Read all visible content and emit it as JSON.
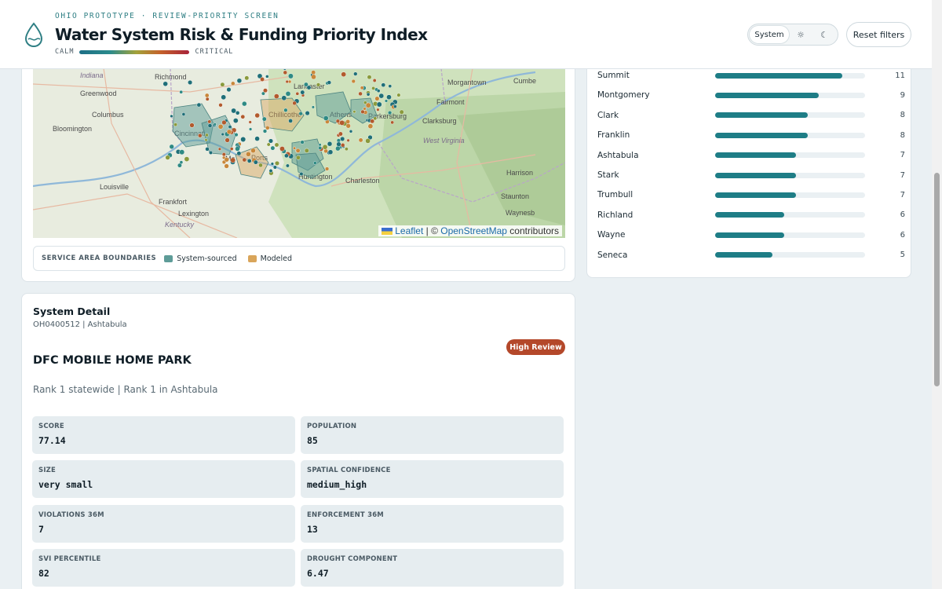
{
  "header": {
    "eyebrow": "OHIO PROTOTYPE · REVIEW-PRIORITY SCREEN",
    "title": "Water System Risk & Funding Priority Index",
    "scale_low": "CALM",
    "scale_high": "CRITICAL",
    "theme_toggle": {
      "selected": "System",
      "options": [
        "System",
        "sun-icon",
        "moon-icon"
      ]
    },
    "reset_label": "Reset filters"
  },
  "map": {
    "place_labels": [
      "Indiana",
      "Richmond",
      "Greenwood",
      "Columbus",
      "Bloomington",
      "Cincinnati",
      "Louisville",
      "Frankfort",
      "Lexington",
      "Kentucky",
      "Chillicothe",
      "Athens",
      "Parkersburg",
      "Clarksburg",
      "Fairmont",
      "Morgantown",
      "Cumbe",
      "West Virginia",
      "Harrison",
      "Charleston",
      "Huntington",
      "Staunton",
      "Waynesb",
      "Ports",
      "Lancaster",
      "Ma"
    ],
    "attribution_leaflet": "Leaflet",
    "attribution_sep": " | © ",
    "attribution_osm": "OpenStreetMap",
    "attribution_tail": " contributors",
    "legend": {
      "title": "SERVICE AREA BOUNDARIES",
      "items": [
        {
          "label": "System-sourced",
          "color": "#5e9c98"
        },
        {
          "label": "Modeled",
          "color": "#d9a55a"
        }
      ]
    }
  },
  "counties": [
    {
      "name": "Summit",
      "count": 11
    },
    {
      "name": "Montgomery",
      "count": 9
    },
    {
      "name": "Clark",
      "count": 8
    },
    {
      "name": "Franklin",
      "count": 8
    },
    {
      "name": "Ashtabula",
      "count": 7
    },
    {
      "name": "Stark",
      "count": 7
    },
    {
      "name": "Trumbull",
      "count": 7
    },
    {
      "name": "Richland",
      "count": 6
    },
    {
      "name": "Wayne",
      "count": 6
    },
    {
      "name": "Seneca",
      "count": 5
    }
  ],
  "county_bar_max": 13,
  "detail": {
    "heading": "System Detail",
    "subheading": "OH0400512 | Ashtabula",
    "badge": "High Review",
    "badge_color": "#b4482a",
    "system_name": "DFC MOBILE HOME PARK",
    "rank_text": "Rank 1 statewide | Rank 1 in Ashtabula",
    "stats": [
      {
        "label": "SCORE",
        "value": "77.14"
      },
      {
        "label": "POPULATION",
        "value": "85"
      },
      {
        "label": "SIZE",
        "value": "very small"
      },
      {
        "label": "SPATIAL CONFIDENCE",
        "value": "medium_high"
      },
      {
        "label": "VIOLATIONS 36M",
        "value": "7"
      },
      {
        "label": "ENFORCEMENT 36M",
        "value": "13"
      },
      {
        "label": "SVI PERCENTILE",
        "value": "82"
      },
      {
        "label": "DROUGHT COMPONENT",
        "value": "6.47"
      }
    ]
  },
  "colors": {
    "accent": "#1e7d86",
    "brand_dark": "#0f1d26"
  }
}
